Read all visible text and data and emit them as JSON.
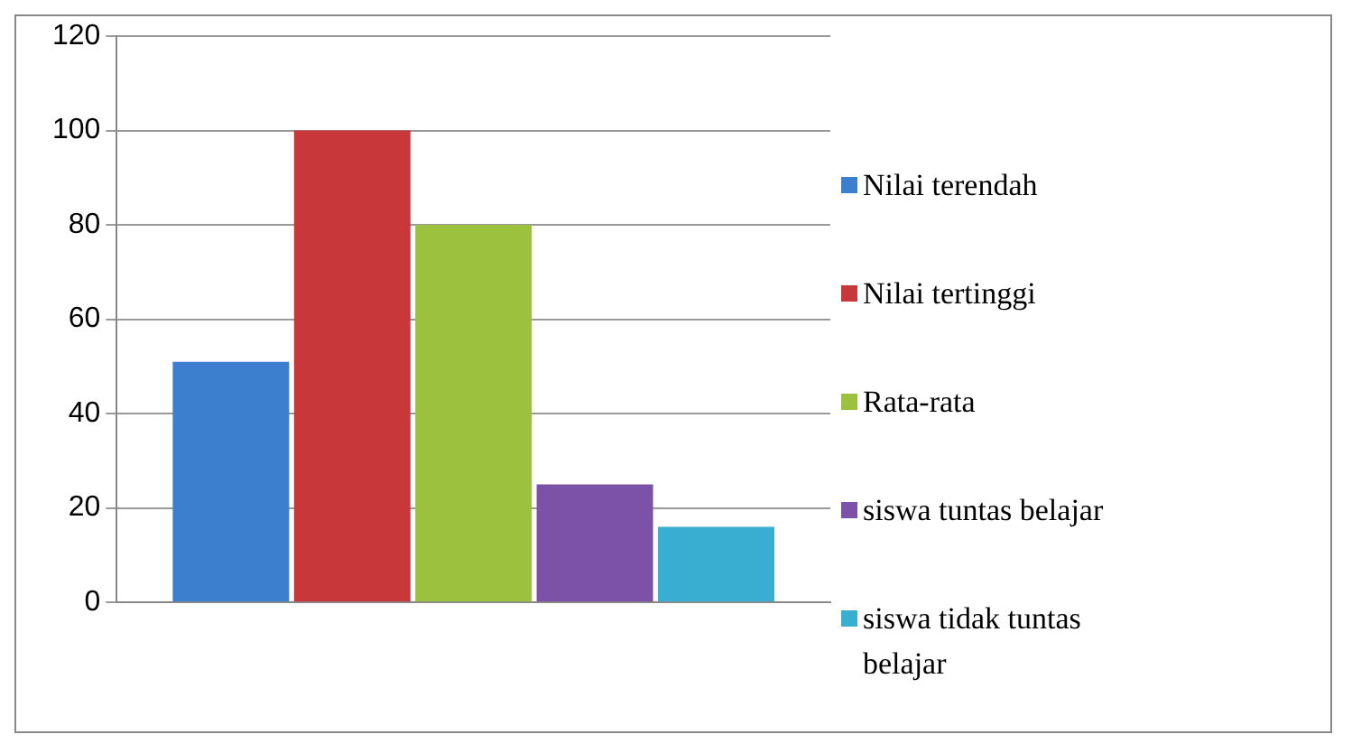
{
  "chart_data": {
    "type": "bar",
    "categories": [
      null
    ],
    "series": [
      {
        "name": "Nilai terendah",
        "color": "#3c7fcf",
        "values": [
          51
        ]
      },
      {
        "name": "Nilai tertinggi",
        "color": "#c8383a",
        "values": [
          100
        ]
      },
      {
        "name": "Rata-rata",
        "color": "#9bc13e",
        "values": [
          80
        ]
      },
      {
        "name": "siswa tuntas belajar",
        "color": "#7b52a8",
        "values": [
          25
        ]
      },
      {
        "name": "siswa tidak tuntas belajar",
        "color": "#3aaed0",
        "values": [
          16
        ]
      }
    ],
    "ylim": [
      0,
      120
    ],
    "yticks": [
      0,
      20,
      40,
      60,
      80,
      100,
      120
    ],
    "grid": "y",
    "legend": "right"
  }
}
